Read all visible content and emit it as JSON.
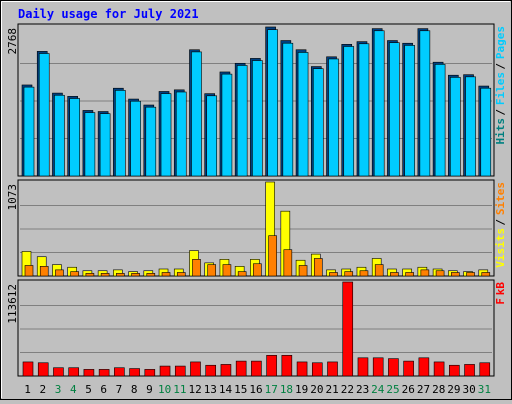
{
  "chart_data": {
    "type": "bar",
    "title": "Daily usage for July 2021",
    "categories": [
      "1",
      "2",
      "3",
      "4",
      "5",
      "6",
      "7",
      "8",
      "9",
      "10",
      "11",
      "12",
      "13",
      "14",
      "15",
      "16",
      "17",
      "18",
      "19",
      "20",
      "21",
      "22",
      "23",
      "24",
      "25",
      "26",
      "27",
      "28",
      "29",
      "30",
      "31"
    ],
    "weekend_days": [
      "3",
      "4",
      "10",
      "11",
      "17",
      "18",
      "24",
      "25",
      "31"
    ],
    "panels": [
      {
        "name": "hits-files",
        "ymax_label": "2768",
        "ymax": 2768,
        "grid": true,
        "legend": [
          "Pages",
          "/",
          "Files",
          "/",
          "Hits"
        ],
        "series": [
          {
            "name": "Hits",
            "color": "#008080",
            "values": [
              1680,
              2300,
              1530,
              1470,
              1210,
              1190,
              1620,
              1420,
              1310,
              1560,
              1590,
              2330,
              1520,
              1920,
              2080,
              2170,
              2750,
              2500,
              2330,
              2020,
              2200,
              2430,
              2480,
              2720,
              2500,
              2450,
              2720,
              2100,
              1860,
              1870,
              1660
            ]
          },
          {
            "name": "Files",
            "color": "#00ccff",
            "values": [
              1640,
              2260,
              1490,
              1430,
              1170,
              1150,
              1580,
              1380,
              1270,
              1520,
              1550,
              2290,
              1480,
              1880,
              2040,
              2130,
              2700,
              2450,
              2280,
              1980,
              2160,
              2390,
              2440,
              2680,
              2460,
              2410,
              2680,
              2060,
              1820,
              1830,
              1620
            ]
          },
          {
            "name": "Pages",
            "color": "#00ccff",
            "values": []
          }
        ]
      },
      {
        "name": "visits-sites",
        "ymax_label": "1073",
        "ymax": 1073,
        "grid": true,
        "legend": [
          "Sites",
          "/",
          "Visits"
        ],
        "series": [
          {
            "name": "Visits",
            "color": "#ffff00",
            "values": [
              280,
              220,
              130,
              100,
              60,
              60,
              70,
              50,
              60,
              80,
              80,
              290,
              150,
              190,
              110,
              190,
              1073,
              740,
              180,
              250,
              70,
              80,
              100,
              200,
              80,
              80,
              100,
              80,
              60,
              50,
              70
            ]
          },
          {
            "name": "Sites",
            "color": "#ff8000",
            "values": [
              120,
              110,
              70,
              50,
              30,
              30,
              30,
              30,
              30,
              40,
              40,
              190,
              130,
              130,
              50,
              140,
              460,
              300,
              120,
              200,
              40,
              50,
              60,
              130,
              40,
              40,
              70,
              60,
              40,
              40,
              40
            ]
          }
        ]
      },
      {
        "name": "kbytes",
        "ymax_label": "113612",
        "ymax": 113612,
        "grid": true,
        "legend": [
          "kB",
          "F"
        ],
        "series": [
          {
            "name": "kB F",
            "color": "#ff0000",
            "values": [
              17000,
              16000,
              10000,
              10000,
              8000,
              8000,
              10000,
              9000,
              8000,
              12000,
              12000,
              17000,
              13000,
              14000,
              18000,
              18000,
              25000,
              25000,
              17000,
              16000,
              17000,
              113612,
              22000,
              22000,
              21000,
              18000,
              22000,
              17000,
              13000,
              14000,
              16000
            ]
          }
        ]
      }
    ]
  }
}
